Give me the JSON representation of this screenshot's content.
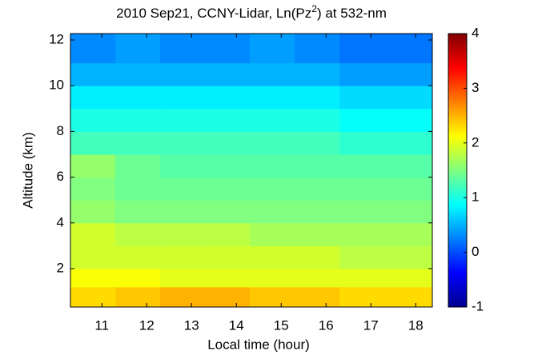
{
  "chart_data": {
    "type": "heatmap",
    "title": [
      "2010 Sep21, CCNY-Lidar, Ln(Pz",
      "2",
      ") at 532-nm"
    ],
    "x_label": "Local time (hour)",
    "y_label": "Altitude (km)",
    "xlim": [
      10.3,
      18.37
    ],
    "ylim": [
      0.32,
      12.28
    ],
    "xticks": [
      11,
      12,
      13,
      14,
      15,
      16,
      17,
      18
    ],
    "yticks": [
      2,
      4,
      6,
      8,
      10,
      12
    ],
    "xbins": [
      10.3,
      11.3,
      12.3,
      13.3,
      14.3,
      15.3,
      16.3,
      17.3,
      18.37
    ],
    "ybins": [
      0.32,
      1.2,
      2,
      3,
      4,
      5,
      6,
      7,
      8,
      9,
      10,
      11,
      12.28
    ],
    "z": [
      [
        2.3,
        2.4,
        2.5,
        2.5,
        2.4,
        2.4,
        2.3,
        2.3
      ],
      [
        2.1,
        2.1,
        2.0,
        2.0,
        2.0,
        2.0,
        2.0,
        2.0
      ],
      [
        1.9,
        1.9,
        1.9,
        1.9,
        1.9,
        1.9,
        1.8,
        1.8
      ],
      [
        1.9,
        1.8,
        1.8,
        1.8,
        1.7,
        1.7,
        1.7,
        1.7
      ],
      [
        1.6,
        1.5,
        1.5,
        1.5,
        1.5,
        1.5,
        1.5,
        1.5
      ],
      [
        1.5,
        1.4,
        1.4,
        1.4,
        1.4,
        1.4,
        1.4,
        1.4
      ],
      [
        1.6,
        1.4,
        1.3,
        1.3,
        1.3,
        1.3,
        1.3,
        1.3
      ],
      [
        1.2,
        1.2,
        1.2,
        1.2,
        1.2,
        1.2,
        1.1,
        1.1
      ],
      [
        1.0,
        1.0,
        1.0,
        1.0,
        1.0,
        1.0,
        0.9,
        0.9
      ],
      [
        0.8,
        0.8,
        0.8,
        0.8,
        0.8,
        0.8,
        0.7,
        0.7
      ],
      [
        0.5,
        0.5,
        0.5,
        0.5,
        0.5,
        0.5,
        0.4,
        0.4
      ],
      [
        0.3,
        0.4,
        0.3,
        0.3,
        0.4,
        0.3,
        0.2,
        0.2
      ]
    ],
    "colormap": "jet",
    "clim": [
      -1,
      4
    ],
    "cticks": [
      -1,
      0,
      1,
      2,
      3,
      4
    ]
  }
}
